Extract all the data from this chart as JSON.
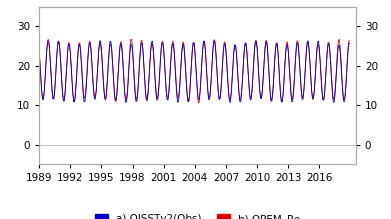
{
  "title": "",
  "xlabel": "",
  "ylabel": "",
  "ylim": [
    -5,
    35
  ],
  "yticks": [
    0,
    10,
    20,
    30
  ],
  "xlim_start": 1989.0,
  "xlim_end": 2019.5,
  "xticks": [
    1989,
    1992,
    1995,
    1998,
    2001,
    2004,
    2007,
    2010,
    2013,
    2016
  ],
  "line1_color": "#0000cc",
  "line2_color": "#dd0000",
  "line1_label": "a) OISSTv2(Obs)",
  "line2_label": "b) OPEM_Re",
  "line_width": 0.6,
  "legend_fontsize": 7.5,
  "tick_fontsize": 7.5,
  "background_color": "#ffffff",
  "sst_base": 18.5,
  "sst_amplitude": 7.5,
  "n_months": 360,
  "start_year": 1989,
  "end_year": 2019
}
